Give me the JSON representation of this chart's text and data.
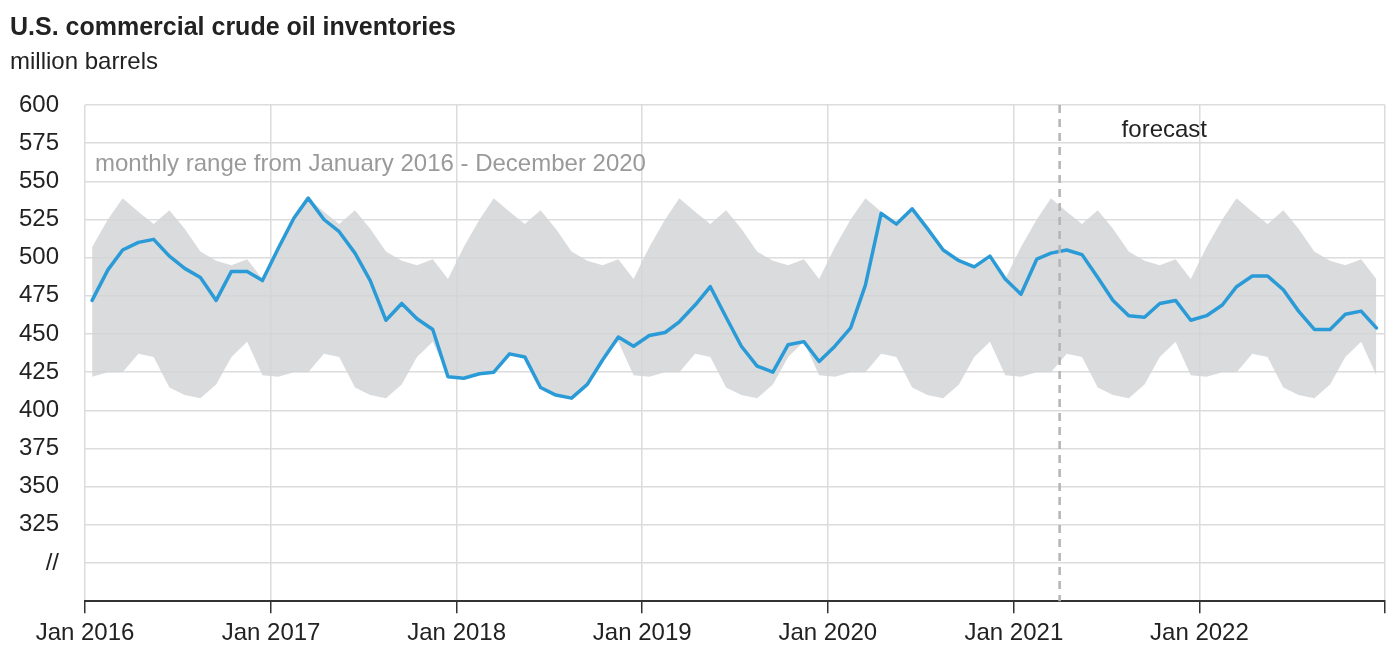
{
  "chart_data": {
    "type": "line",
    "title": "U.S. commercial crude oil inventories",
    "ylabel": "million barrels",
    "annotations": [
      "monthly range from January 2016 - December 2020"
    ],
    "x": [
      "2016-01-15",
      "2016-02-15",
      "2016-03-15",
      "2016-04-15",
      "2016-05-15",
      "2016-06-15",
      "2016-07-15",
      "2016-08-15",
      "2016-09-15",
      "2016-10-15",
      "2016-11-15",
      "2016-12-15",
      "2017-01-15",
      "2017-02-15",
      "2017-03-15",
      "2017-04-15",
      "2017-05-15",
      "2017-06-15",
      "2017-07-15",
      "2017-08-15",
      "2017-09-15",
      "2017-10-15",
      "2017-11-15",
      "2017-12-15",
      "2018-01-15",
      "2018-02-15",
      "2018-03-15",
      "2018-04-15",
      "2018-05-15",
      "2018-06-15",
      "2018-07-15",
      "2018-08-15",
      "2018-09-15",
      "2018-10-15",
      "2018-11-15",
      "2018-12-15",
      "2019-01-15",
      "2019-02-15",
      "2019-03-15",
      "2019-04-15",
      "2019-05-15",
      "2019-06-15",
      "2019-07-15",
      "2019-08-15",
      "2019-09-15",
      "2019-10-15",
      "2019-11-15",
      "2019-12-15",
      "2020-01-15",
      "2020-02-15",
      "2020-03-15",
      "2020-04-15",
      "2020-05-15",
      "2020-06-15",
      "2020-07-15",
      "2020-08-15",
      "2020-09-15",
      "2020-10-15",
      "2020-11-15",
      "2020-12-15",
      "2021-01-15",
      "2021-02-15",
      "2021-03-15",
      "2021-04-15",
      "2021-05-15",
      "2021-06-15",
      "2021-07-15",
      "2021-08-15",
      "2021-09-15",
      "2021-10-15",
      "2021-11-15",
      "2021-12-15",
      "2022-01-15",
      "2022-02-15",
      "2022-03-15",
      "2022-04-15",
      "2022-05-15",
      "2022-06-15",
      "2022-07-15",
      "2022-08-15",
      "2022-09-15",
      "2022-10-15",
      "2022-11-15",
      "2022-12-15"
    ],
    "series": [
      {
        "color": "#2a9bd6",
        "values": [
          472,
          492,
          505,
          510,
          512,
          501,
          493,
          487,
          472,
          491,
          491,
          485,
          506,
          526,
          539,
          525,
          517,
          503,
          485,
          459,
          470,
          460,
          453,
          422,
          421,
          424,
          425,
          437,
          435,
          415,
          410,
          408,
          417,
          433,
          448,
          442,
          449,
          451,
          458,
          469,
          481,
          461,
          442,
          429,
          425,
          443,
          445,
          432,
          442,
          454,
          482,
          529,
          522,
          532,
          519,
          505,
          498,
          494,
          501,
          486,
          476,
          499,
          503,
          505,
          502,
          487,
          472,
          462,
          461,
          470,
          472,
          459,
          462,
          469,
          481,
          488,
          488,
          479,
          465,
          453,
          453,
          463,
          465,
          454
        ],
        "lower": [
          422,
          425,
          425,
          437,
          435,
          415,
          410,
          408,
          417,
          435,
          445,
          423,
          422,
          425,
          425,
          437,
          435,
          415,
          410,
          408,
          417,
          435,
          445,
          423,
          422,
          425,
          425,
          437,
          435,
          415,
          410,
          408,
          417,
          435,
          445,
          423,
          422,
          425,
          425,
          437,
          435,
          415,
          410,
          408,
          417,
          435,
          445,
          423,
          422,
          425,
          425,
          437,
          435,
          415,
          410,
          408,
          417,
          435,
          445,
          423,
          422,
          425,
          425,
          437,
          435,
          415,
          410,
          408,
          417,
          435,
          445,
          423,
          422,
          425,
          425,
          437,
          435,
          415,
          410,
          408,
          417,
          435,
          445,
          423
        ],
        "upper": [
          507,
          525,
          539,
          530,
          522,
          531,
          519,
          504,
          498,
          495,
          499,
          486,
          507,
          525,
          539,
          530,
          522,
          531,
          519,
          504,
          498,
          495,
          499,
          486,
          507,
          525,
          539,
          530,
          522,
          531,
          519,
          504,
          498,
          495,
          499,
          486,
          507,
          525,
          539,
          530,
          522,
          531,
          519,
          504,
          498,
          495,
          499,
          486,
          507,
          525,
          539,
          530,
          522,
          531,
          519,
          504,
          498,
          495,
          499,
          486,
          507,
          525,
          539,
          530,
          522,
          531,
          519,
          504,
          498,
          495,
          499,
          486,
          507,
          525,
          539,
          530,
          522,
          531,
          519,
          504,
          498,
          495,
          499,
          486
        ]
      }
    ],
    "xlim": [
      "2016-01",
      "2023-01"
    ],
    "xticks": [
      {
        "value": "2016-01",
        "label": "Jan 2016"
      },
      {
        "value": "2017-01",
        "label": "Jan 2017"
      },
      {
        "value": "2018-01",
        "label": "Jan 2018"
      },
      {
        "value": "2019-01",
        "label": "Jan 2019"
      },
      {
        "value": "2020-01",
        "label": "Jan 2020"
      },
      {
        "value": "2021-01",
        "label": "Jan 2021"
      },
      {
        "value": "2022-01",
        "label": "Jan 2022"
      },
      {
        "value": "2023-01",
        "label": null
      }
    ],
    "ylim": [
      275,
      600
    ],
    "yticks": [
      {
        "value": 300,
        "label": "//"
      },
      325,
      350,
      375,
      400,
      425,
      450,
      475,
      500,
      525,
      550,
      575,
      600
    ],
    "grid": true,
    "marker": "none",
    "ref_lines": [
      {
        "axis": "x",
        "value": "2021-04",
        "label": "forecast",
        "color": "#b4b4b4",
        "line_style": "dashed"
      }
    ]
  }
}
